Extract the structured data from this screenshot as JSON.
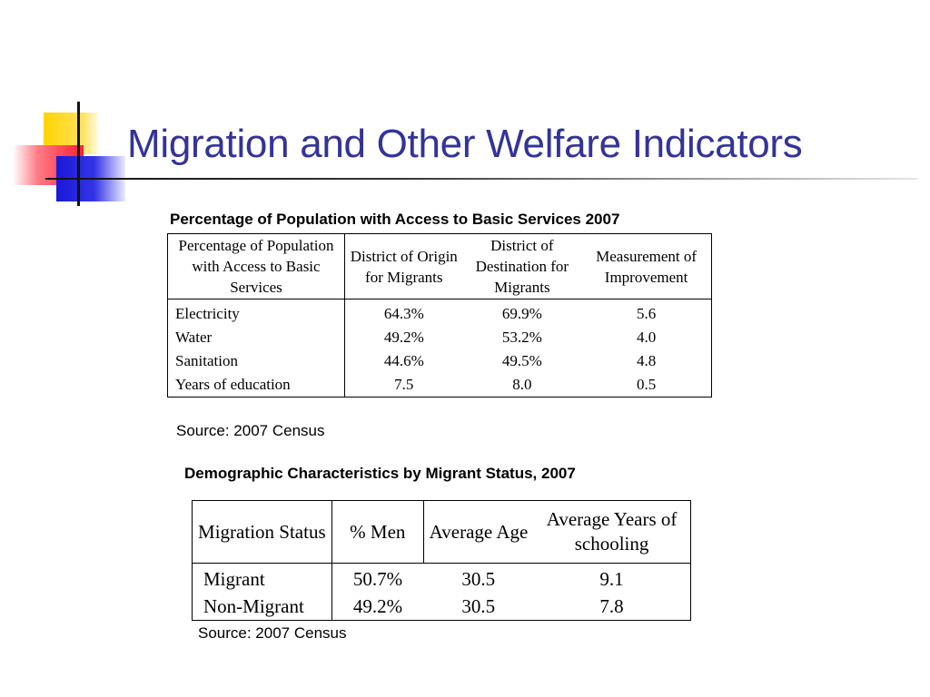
{
  "slide": {
    "title": "Migration and Other Welfare Indicators"
  },
  "table1": {
    "caption": "Percentage of Population with Access to Basic Services 2007",
    "headers": [
      "Percentage of Population with Access to Basic Services",
      "District of Origin for Migrants",
      "District of Destination for Migrants",
      "Measurement of Improvement"
    ],
    "rows": [
      [
        "Electricity",
        "64.3%",
        "69.9%",
        "5.6"
      ],
      [
        "Water",
        "49.2%",
        "53.2%",
        "4.0"
      ],
      [
        "Sanitation",
        "44.6%",
        "49.5%",
        "4.8"
      ],
      [
        "Years of education",
        "7.5",
        "8.0",
        "0.5"
      ]
    ],
    "source": "Source: 2007 Census"
  },
  "table2": {
    "caption": "Demographic Characteristics by Migrant Status, 2007",
    "headers": [
      "Migration Status",
      "% Men",
      "Average Age",
      "Average Years of schooling"
    ],
    "rows": [
      [
        "Migrant",
        "50.7%",
        "30.5",
        "9.1"
      ],
      [
        "Non-Migrant",
        "49.2%",
        "30.5",
        "7.8"
      ]
    ],
    "source": "Source: 2007 Census"
  },
  "colors": {
    "title": "#333399",
    "logo_yellow": "#ffd400",
    "logo_red": "#ff1f33",
    "logo_blue": "#1919d9"
  }
}
